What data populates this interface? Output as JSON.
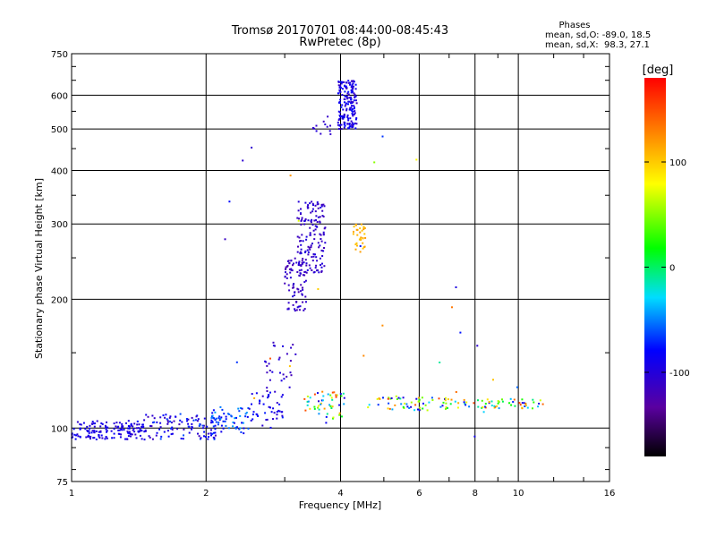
{
  "chart_data": {
    "type": "scatter",
    "title": "Tromsø 20170701 08:44:00-08:45:43",
    "subtitle": "RwPretec (8p)",
    "xlabel": "Frequency [MHz]",
    "ylabel": "Stationary phase Virtual Height [km]",
    "x_scale": "log",
    "y_scale": "log",
    "xlim": [
      1,
      16
    ],
    "ylim": [
      75,
      750
    ],
    "x_ticks": [
      1,
      2,
      4,
      6,
      8,
      10,
      16
    ],
    "x_tick_labels": [
      "1",
      "2",
      "4",
      "6",
      "8",
      "10",
      "16"
    ],
    "y_ticks": [
      75,
      100,
      200,
      300,
      400,
      500,
      600,
      750
    ],
    "y_tick_labels": [
      "75",
      "100",
      "200",
      "300",
      "400",
      "500",
      "600",
      "750"
    ],
    "grid": true,
    "annotation": {
      "heading": "Phases",
      "line1": "mean, sd,O: -89.0, 18.5",
      "line2": "mean, sd,X:  98.3, 27.1"
    },
    "colorbar": {
      "label": "[deg]",
      "range": [
        -180,
        180
      ],
      "ticks": [
        100,
        0,
        -100
      ],
      "tick_labels": [
        "100",
        "0",
        "-100"
      ]
    },
    "clusters": [
      {
        "f": [
          1.0,
          1.45
        ],
        "h": [
          94,
          104
        ],
        "n": 150,
        "phase": [
          -110,
          -80
        ]
      },
      {
        "f": [
          1.45,
          2.15
        ],
        "h": [
          94,
          108
        ],
        "n": 110,
        "phase": [
          -120,
          -60
        ]
      },
      {
        "f": [
          2.05,
          2.5
        ],
        "h": [
          97,
          112
        ],
        "n": 60,
        "phase": [
          -90,
          -40
        ]
      },
      {
        "f": [
          2.5,
          3.0
        ],
        "h": [
          100,
          122
        ],
        "n": 45,
        "phase": [
          -110,
          -70
        ]
      },
      {
        "f": [
          2.7,
          3.2
        ],
        "h": [
          120,
          160
        ],
        "n": 30,
        "phase": [
          -120,
          -95
        ]
      },
      {
        "f": [
          3.0,
          3.35
        ],
        "h": [
          188,
          250
        ],
        "n": 80,
        "phase": [
          -125,
          -100
        ]
      },
      {
        "f": [
          3.2,
          3.7
        ],
        "h": [
          230,
          340
        ],
        "n": 150,
        "phase": [
          -120,
          -95
        ]
      },
      {
        "f": [
          3.95,
          4.35
        ],
        "h": [
          500,
          650
        ],
        "n": 170,
        "phase": [
          -115,
          -75
        ]
      },
      {
        "f": [
          3.45,
          3.8
        ],
        "h": [
          480,
          540
        ],
        "n": 12,
        "phase": [
          -115,
          -100
        ]
      },
      {
        "f": [
          4.25,
          4.55
        ],
        "h": [
          258,
          300
        ],
        "n": 35,
        "phase": [
          100,
          120
        ]
      },
      {
        "f": [
          3.3,
          4.1
        ],
        "h": [
          105,
          122
        ],
        "n": 50,
        "phase": [
          -110,
          160
        ]
      },
      {
        "f": [
          4.6,
          7.0
        ],
        "h": [
          110,
          118
        ],
        "n": 60,
        "phase": [
          -100,
          160
        ]
      },
      {
        "f": [
          7.0,
          11.5
        ],
        "h": [
          111,
          117
        ],
        "n": 60,
        "phase": [
          -100,
          160
        ]
      },
      {
        "f": [
          2.2,
          10.0
        ],
        "h": [
          88,
          500
        ],
        "n": 30,
        "phase": [
          -120,
          150
        ]
      }
    ]
  }
}
